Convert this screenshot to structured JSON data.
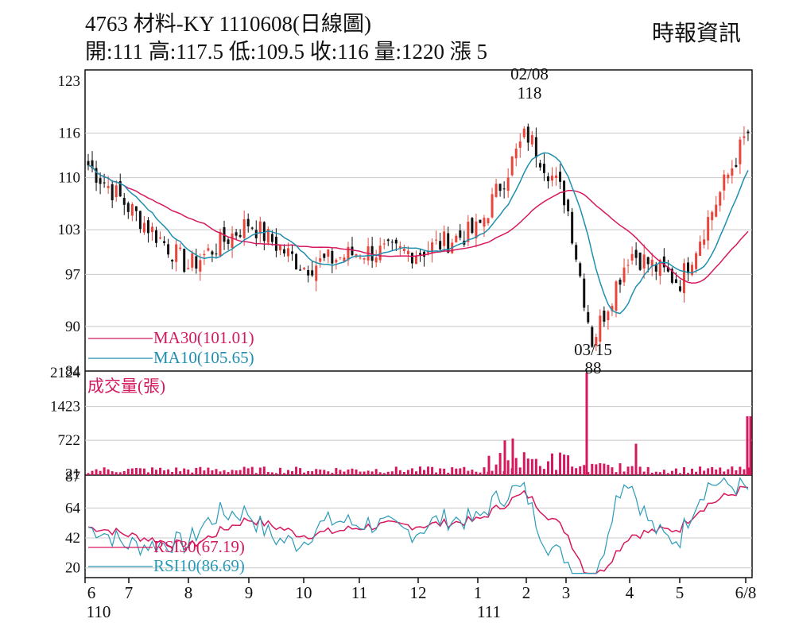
{
  "header": {
    "title": "4763  材料-KY 1110608(日線圖)",
    "ohlc": "開:111 高:117.5 低:109.5 收:116 量:1220 漲 5",
    "source": "時報資訊"
  },
  "chart_data": {
    "type": "candlestick",
    "colors": {
      "up": "#e8463c",
      "down": "#111111",
      "ma30": "#d6185f",
      "ma10": "#1f8fb0",
      "volume": "#d6185f",
      "rsi30": "#d6185f",
      "rsi10": "#2a9bb8",
      "grid": "#c8c8c8"
    },
    "x_ticks": [
      "6",
      "7",
      "8",
      "9",
      "10",
      "11",
      "12",
      "1",
      "2",
      "3",
      "4",
      "5",
      "6/8"
    ],
    "x_year_labels": [
      {
        "month": "6",
        "year": "110"
      },
      {
        "month": "1",
        "year": "111"
      }
    ],
    "price_panel": {
      "yticks": [
        123,
        116,
        110,
        103,
        97,
        90,
        84
      ],
      "ylim": [
        84,
        123
      ],
      "annotations": [
        {
          "label": "02/08",
          "value": "118"
        },
        {
          "label": "03/15",
          "value": "88"
        }
      ],
      "legend": [
        {
          "name": "MA30(101.01)",
          "color": "#d6185f"
        },
        {
          "name": "MA10(105.65)",
          "color": "#1f8fb0"
        }
      ],
      "key_points": [
        {
          "date": "2021-06",
          "price": 111
        },
        {
          "date": "2021-08",
          "price": 96
        },
        {
          "date": "2021-09",
          "price": 106
        },
        {
          "date": "2021-10",
          "price": 99
        },
        {
          "date": "2021-12",
          "price": 100
        },
        {
          "date": "2022-01",
          "price": 105
        },
        {
          "date": "2022-02-08",
          "price": 118
        },
        {
          "date": "2022-03-15",
          "price": 88
        },
        {
          "date": "2022-04",
          "price": 100
        },
        {
          "date": "2022-05",
          "price": 96
        },
        {
          "date": "2022-06-08",
          "price": 116
        }
      ]
    },
    "volume_panel": {
      "label": "成交量(張)",
      "yticks": [
        2124,
        1423,
        722,
        21
      ],
      "ylim": [
        0,
        2124
      ],
      "spikes": [
        {
          "date": "2022-03-15",
          "value": 2124
        },
        {
          "date": "2022-06-08",
          "value": 1220
        }
      ]
    },
    "rsi_panel": {
      "yticks": [
        87,
        64,
        42,
        20
      ],
      "ylim": [
        14,
        87
      ],
      "legend": [
        {
          "name": "RSI30(67.19)",
          "color": "#d6185f"
        },
        {
          "name": "RSI10(86.69)",
          "color": "#2a9bb8"
        }
      ]
    }
  }
}
